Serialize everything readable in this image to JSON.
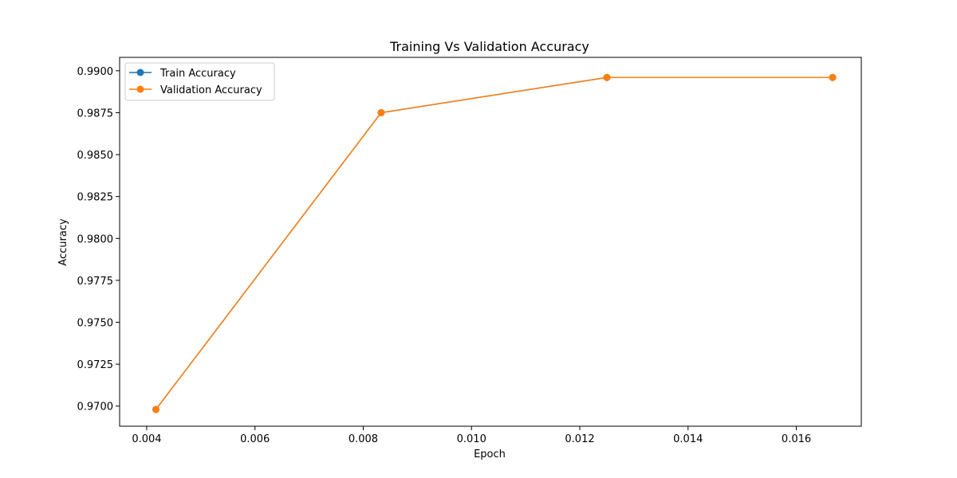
{
  "chart_data": {
    "type": "line",
    "title": "Training Vs Validation Accuracy",
    "xlabel": "Epoch",
    "ylabel": "Accuracy",
    "xlim": [
      0.0035,
      0.0172
    ],
    "ylim": [
      0.9688,
      0.9908
    ],
    "xticks": [
      0.004,
      0.006,
      0.008,
      0.01,
      0.012,
      0.014,
      0.016
    ],
    "xtick_labels": [
      "0.004",
      "0.006",
      "0.008",
      "0.010",
      "0.012",
      "0.014",
      "0.016"
    ],
    "yticks": [
      0.97,
      0.9725,
      0.975,
      0.9775,
      0.98,
      0.9825,
      0.985,
      0.9875,
      0.99
    ],
    "ytick_labels": [
      "0.9700",
      "0.9725",
      "0.9750",
      "0.9775",
      "0.9800",
      "0.9825",
      "0.9850",
      "0.9875",
      "0.9900"
    ],
    "grid": false,
    "legend_position": "top-left",
    "x": [
      0.00417,
      0.00833,
      0.0125,
      0.01667
    ],
    "series": [
      {
        "name": "Train Accuracy",
        "color": "#1f77b4",
        "values": [
          0.9698,
          0.9875,
          0.9896,
          0.9896
        ]
      },
      {
        "name": "Validation Accuracy",
        "color": "#ff7f0e",
        "values": [
          0.9698,
          0.9875,
          0.9896,
          0.9896
        ]
      }
    ]
  }
}
